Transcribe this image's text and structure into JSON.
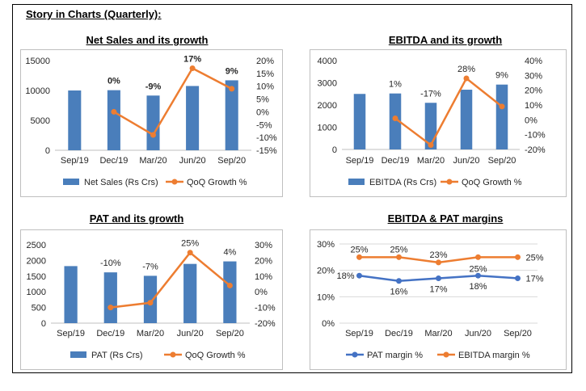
{
  "page_title": "Story in Charts (Quarterly):",
  "colors": {
    "bar": "#4a7ebb",
    "line": "#ed7d31",
    "pat_line": "#4472c4",
    "grid": "#d9d9d9",
    "axis": "#bfbfbf"
  },
  "chart_data": [
    {
      "id": "net_sales",
      "type": "bar+line",
      "title": "Net Sales and its growth",
      "categories": [
        "Sep/19",
        "Dec/19",
        "Mar/20",
        "Jun/20",
        "Sep/20"
      ],
      "series": [
        {
          "name": "Net Sales (Rs Crs)",
          "kind": "bar",
          "axis": "left",
          "values": [
            10000,
            10050,
            9150,
            10750,
            11700
          ]
        },
        {
          "name": "QoQ Growth %",
          "kind": "line",
          "axis": "right",
          "values": [
            null,
            0,
            -9,
            17,
            9
          ]
        }
      ],
      "data_labels": [
        "",
        "0%",
        "-9%",
        "17%",
        "9%"
      ],
      "data_labels_bold": true,
      "y_left": {
        "min": 0,
        "max": 15000,
        "ticks": [
          "0",
          "5000",
          "10000",
          "15000"
        ]
      },
      "y_right": {
        "min": -15,
        "max": 20,
        "ticks": [
          "-15%",
          "-10%",
          "-5%",
          "0%",
          "5%",
          "10%",
          "15%",
          "20%"
        ]
      },
      "grid": false,
      "legend": "bottom"
    },
    {
      "id": "ebitda",
      "type": "bar+line",
      "title": "EBITDA and its growth",
      "categories": [
        "Sep/19",
        "Dec/19",
        "Mar/20",
        "Jun/20",
        "Sep/20"
      ],
      "series": [
        {
          "name": "EBITDA (Rs Crs)",
          "kind": "bar",
          "axis": "left",
          "values": [
            2500,
            2520,
            2100,
            2690,
            2920
          ]
        },
        {
          "name": "QoQ Growth %",
          "kind": "line",
          "axis": "right",
          "values": [
            null,
            1,
            -17,
            28,
            9
          ]
        }
      ],
      "data_labels": [
        "",
        "1%",
        "-17%",
        "28%",
        "9%"
      ],
      "data_labels_bold": false,
      "y_left": {
        "min": 0,
        "max": 4000,
        "ticks": [
          "0",
          "1000",
          "2000",
          "3000",
          "4000"
        ]
      },
      "y_right": {
        "min": -20,
        "max": 40,
        "ticks": [
          "-20%",
          "-10%",
          "0%",
          "10%",
          "20%",
          "30%",
          "40%"
        ]
      },
      "grid": false,
      "legend": "bottom"
    },
    {
      "id": "pat",
      "type": "bar+line",
      "title": "PAT and its growth",
      "categories": [
        "Sep/19",
        "Dec/19",
        "Mar/20",
        "Jun/20",
        "Sep/20"
      ],
      "series": [
        {
          "name": "PAT (Rs Crs)",
          "kind": "bar",
          "axis": "left",
          "values": [
            1820,
            1620,
            1510,
            1890,
            1970
          ]
        },
        {
          "name": "QoQ Growth %",
          "kind": "line",
          "axis": "right",
          "values": [
            null,
            -10,
            -7,
            25,
            4
          ]
        }
      ],
      "data_labels": [
        "",
        "-10%",
        "-7%",
        "25%",
        "4%"
      ],
      "data_labels_bold": false,
      "y_left": {
        "min": 0,
        "max": 2500,
        "ticks": [
          "0",
          "500",
          "1000",
          "1500",
          "2000",
          "2500"
        ]
      },
      "y_right": {
        "min": -20,
        "max": 30,
        "ticks": [
          "-20%",
          "-10%",
          "0%",
          "10%",
          "20%",
          "30%"
        ]
      },
      "grid": false,
      "legend": "bottom"
    },
    {
      "id": "margins",
      "type": "line",
      "title": "EBITDA & PAT margins",
      "categories": [
        "Sep/19",
        "Dec/19",
        "Mar/20",
        "Jun/20",
        "Sep/20"
      ],
      "series": [
        {
          "name": "PAT margin %",
          "values": [
            18,
            16,
            17,
            18,
            17
          ],
          "labels": [
            "18%",
            "16%",
            "17%",
            "18%",
            "17%"
          ]
        },
        {
          "name": "EBITDA margin %",
          "values": [
            25,
            25,
            23,
            25,
            25
          ],
          "labels": [
            "25%",
            "25%",
            "23%",
            "25%",
            "25%"
          ]
        }
      ],
      "y": {
        "min": 0,
        "max": 30,
        "ticks": [
          "0%",
          "10%",
          "20%",
          "30%"
        ]
      },
      "grid": true,
      "legend": "bottom"
    }
  ]
}
